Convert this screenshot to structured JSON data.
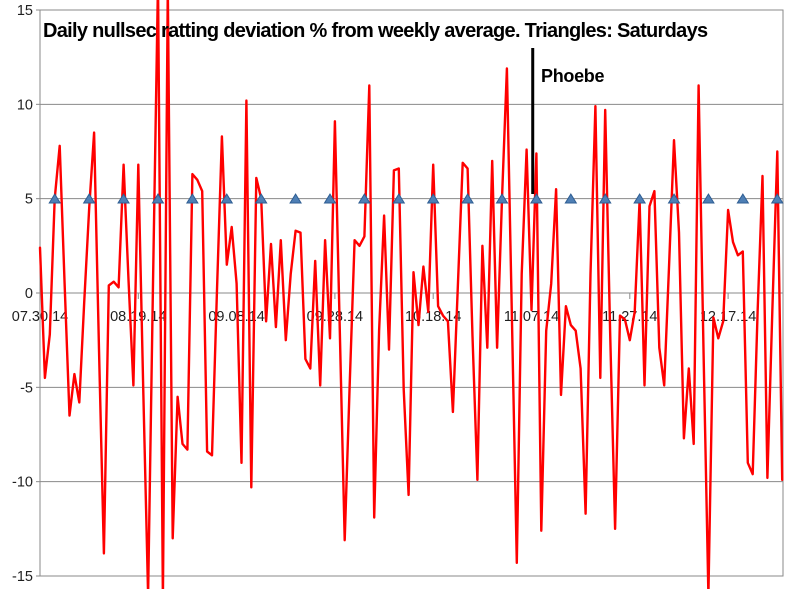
{
  "title": "Daily nullsec ratting deviation % from weekly average. Triangles: Saturdays",
  "annotation_label": "Phoebe",
  "colors": {
    "series_line": "#FF0000",
    "marker_fill": "#4E7FB5",
    "marker_border": "#2F5E93",
    "gridline": "#8A8A8A",
    "annotation_line": "#000000",
    "text": "#1F1F1F",
    "background": "#FFFFFF"
  },
  "chart_data": {
    "type": "line",
    "title": "Daily nullsec ratting deviation % from weekly average. Triangles: Saturdays",
    "xlabel": "",
    "ylabel": "",
    "start_date": "07.30.14",
    "frequency": "daily",
    "ylim": [
      -15,
      15
    ],
    "y_ticks": [
      15,
      10,
      5,
      0,
      -5,
      -10,
      -15
    ],
    "x_tick_labels": [
      "07.30.14",
      "08.19.14",
      "09.08.14",
      "09.28.14",
      "10.18.14",
      "11.07.14",
      "11.27.14",
      "12.17.14"
    ],
    "x_tick_day_indices": [
      0,
      20,
      40,
      60,
      80,
      100,
      120,
      140
    ],
    "grid": "horizontal",
    "legend": "none",
    "series": [
      {
        "name": "Daily ratting deviation %",
        "color": "#FF0000",
        "values": [
          2.4,
          -4.5,
          -2.2,
          5.0,
          7.8,
          0.5,
          -6.5,
          -4.3,
          -5.8,
          -0.5,
          4.5,
          8.5,
          -3.0,
          -13.8,
          0.4,
          0.6,
          0.3,
          6.8,
          0.7,
          -4.9,
          6.8,
          -5.0,
          -16.0,
          0.5,
          16.5,
          -16.2,
          16.2,
          -13.0,
          -5.5,
          -8.0,
          -8.3,
          6.3,
          6.0,
          5.4,
          -8.4,
          -8.6,
          0.0,
          8.3,
          1.5,
          3.5,
          0.5,
          -9.0,
          10.2,
          -10.3,
          6.1,
          5.0,
          -1.5,
          2.6,
          -1.8,
          2.8,
          -2.5,
          1.0,
          3.3,
          3.2,
          -3.5,
          -4.0,
          1.7,
          -4.9,
          2.8,
          -2.4,
          9.1,
          -2.0,
          -13.1,
          -5.0,
          2.8,
          2.5,
          3.0,
          11.0,
          -11.9,
          -2.0,
          4.1,
          -3.0,
          6.5,
          6.6,
          -5.1,
          -10.7,
          1.1,
          -1.7,
          1.4,
          -1.0,
          6.8,
          -0.7,
          -1.2,
          -1.5,
          -6.3,
          0.3,
          6.9,
          6.6,
          -2.3,
          -9.9,
          2.5,
          -2.9,
          7.0,
          -2.9,
          5.0,
          11.9,
          -1.0,
          -14.3,
          1.0,
          7.6,
          -0.9,
          7.4,
          -12.6,
          -2.0,
          0.5,
          5.5,
          -5.4,
          -0.7,
          -1.7,
          -2.0,
          -4.0,
          -11.7,
          1.0,
          9.9,
          -4.5,
          9.7,
          -2.0,
          -12.5,
          -1.2,
          -1.4,
          -2.5,
          -1.0,
          4.9,
          -4.9,
          4.6,
          5.4,
          -2.9,
          -4.9,
          1.5,
          8.1,
          3.2,
          -7.7,
          -4.0,
          -8.0,
          11.0,
          -3.0,
          -16.0,
          -1.3,
          -2.4,
          -1.5,
          4.4,
          2.7,
          2.0,
          2.2,
          -9.0,
          -9.6,
          -1.0,
          6.2,
          -9.8,
          -1.0,
          7.5,
          -9.9
        ]
      }
    ],
    "markers": {
      "name": "Saturdays",
      "shape": "triangle",
      "y_value": 5,
      "fill": "#4E7FB5",
      "border": "#2F5E93",
      "day_indices": [
        3,
        10,
        17,
        24,
        31,
        38,
        45,
        52,
        59,
        66,
        73,
        80,
        87,
        94,
        101,
        108,
        115,
        122,
        129,
        136,
        143,
        150
      ]
    },
    "annotation": {
      "label": "Phoebe",
      "day_index": 100.25,
      "line_color": "#000000"
    }
  }
}
